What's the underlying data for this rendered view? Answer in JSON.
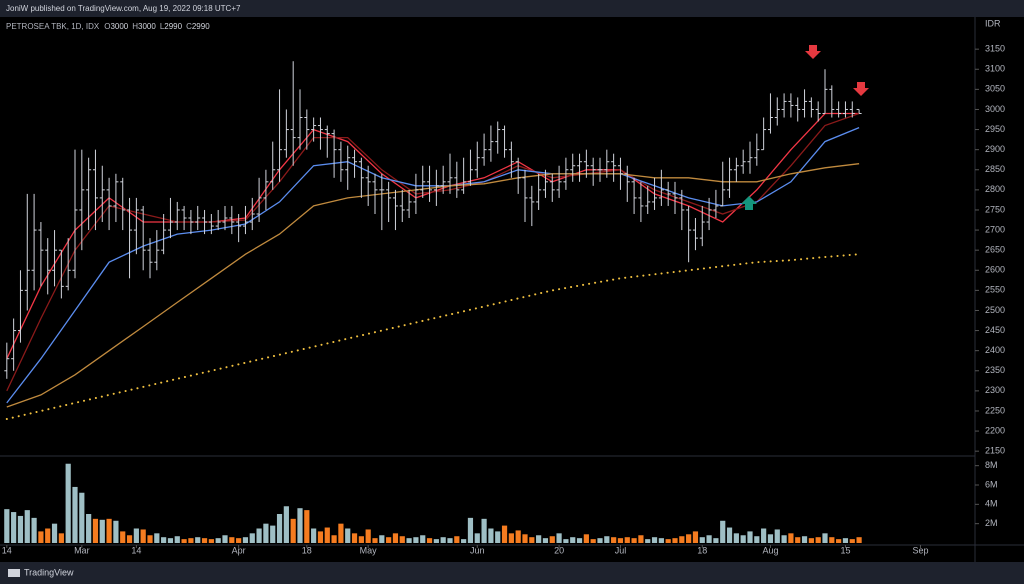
{
  "header": "JoniW published on TradingView.com, Aug 19, 2022 09:18 UTC+7",
  "footer": "TradingView",
  "chart_data": {
    "type": "ohlc",
    "title": "PETROSEA TBK, 1D, IDX",
    "ohlc_legend": [
      {
        "label": "O",
        "value": 3000
      },
      {
        "label": "H",
        "value": 3000
      },
      {
        "label": "L",
        "value": 2990
      },
      {
        "label": "C",
        "value": 2990
      }
    ],
    "currency": "IDR",
    "color": "#d1d4dc",
    "ylim": [
      2138,
      3230
    ],
    "yticks": [
      2150,
      2200,
      2250,
      2300,
      2350,
      2400,
      2450,
      2500,
      2550,
      2600,
      2650,
      2700,
      2750,
      2800,
      2850,
      2900,
      2950,
      3000,
      3050,
      3100,
      3150
    ],
    "xlim": [
      -1,
      142
    ],
    "xticks": [
      {
        "value": 0,
        "label": "14"
      },
      {
        "value": 11,
        "label": "Mar"
      },
      {
        "value": 19,
        "label": "14"
      },
      {
        "value": 34,
        "label": "Apr"
      },
      {
        "value": 44,
        "label": "18"
      },
      {
        "value": 53,
        "label": "May"
      },
      {
        "value": 69,
        "label": "Jun"
      },
      {
        "value": 81,
        "label": "20"
      },
      {
        "value": 90,
        "label": "Jul"
      },
      {
        "value": 102,
        "label": "18"
      },
      {
        "value": 112,
        "label": "Aug"
      },
      {
        "value": 123,
        "label": "15"
      },
      {
        "value": 134,
        "label": "Sep"
      }
    ],
    "grid": false,
    "ohlc": {
      "open": [
        2350,
        2380,
        2450,
        2550,
        2600,
        2700,
        2650,
        2600,
        2650,
        2560,
        2600,
        2750,
        2800,
        2850,
        2780,
        2800,
        2760,
        2820,
        2750,
        2700,
        2750,
        2650,
        2620,
        2650,
        2700,
        2720,
        2750,
        2730,
        2720,
        2730,
        2720,
        2710,
        2720,
        2730,
        2720,
        2710,
        2720,
        2740,
        2780,
        2820,
        2850,
        2900,
        2950,
        2930,
        2980,
        2950,
        2960,
        2950,
        2940,
        2900,
        2850,
        2880,
        2870,
        2830,
        2820,
        2800,
        2800,
        2780,
        2760,
        2750,
        2770,
        2800,
        2820,
        2800,
        2810,
        2820,
        2830,
        2800,
        2820,
        2850,
        2880,
        2900,
        2920,
        2950,
        2900,
        2870,
        2830,
        2780,
        2770,
        2800,
        2820,
        2800,
        2820,
        2850,
        2860,
        2870,
        2860,
        2850,
        2850,
        2870,
        2860,
        2840,
        2820,
        2780,
        2760,
        2770,
        2780,
        2800,
        2790,
        2780,
        2750,
        2700,
        2680,
        2720,
        2750,
        2760,
        2800,
        2850,
        2860,
        2870,
        2880,
        2900,
        2950,
        2980,
        3000,
        3020,
        3010,
        3000,
        3020,
        3000,
        2990,
        3050,
        3000,
        2990,
        3000,
        3000
      ],
      "high": [
        2420,
        2480,
        2600,
        2790,
        2790,
        2720,
        2680,
        2700,
        2650,
        2680,
        2900,
        2900,
        2880,
        2900,
        2860,
        2830,
        2840,
        2830,
        2780,
        2780,
        2760,
        2680,
        2700,
        2740,
        2780,
        2770,
        2760,
        2750,
        2760,
        2750,
        2740,
        2750,
        2760,
        2760,
        2740,
        2760,
        2780,
        2830,
        2850,
        2920,
        3050,
        3000,
        3120,
        3050,
        3000,
        2980,
        2980,
        2960,
        2950,
        2920,
        2910,
        2900,
        2880,
        2860,
        2840,
        2840,
        2820,
        2800,
        2800,
        2800,
        2840,
        2860,
        2860,
        2850,
        2860,
        2890,
        2870,
        2880,
        2900,
        2920,
        2940,
        2960,
        2970,
        2960,
        2920,
        2880,
        2850,
        2810,
        2840,
        2850,
        2840,
        2860,
        2880,
        2890,
        2890,
        2900,
        2880,
        2880,
        2900,
        2890,
        2880,
        2860,
        2830,
        2820,
        2810,
        2830,
        2850,
        2820,
        2820,
        2800,
        2760,
        2730,
        2760,
        2780,
        2800,
        2870,
        2880,
        2880,
        2900,
        2920,
        2940,
        2980,
        3040,
        3030,
        3040,
        3040,
        3030,
        3050,
        3030,
        3020,
        3100,
        3060,
        3020,
        3020,
        3020,
        3000
      ],
      "low": [
        2330,
        2350,
        2420,
        2500,
        2550,
        2560,
        2540,
        2560,
        2530,
        2550,
        2580,
        2650,
        2700,
        2700,
        2720,
        2700,
        2720,
        2700,
        2580,
        2640,
        2600,
        2580,
        2600,
        2640,
        2680,
        2700,
        2700,
        2690,
        2700,
        2690,
        2690,
        2700,
        2700,
        2690,
        2670,
        2690,
        2700,
        2720,
        2750,
        2800,
        2820,
        2880,
        2860,
        2900,
        2900,
        2920,
        2900,
        2880,
        2830,
        2820,
        2800,
        2830,
        2780,
        2760,
        2740,
        2700,
        2720,
        2700,
        2720,
        2730,
        2740,
        2780,
        2770,
        2760,
        2790,
        2790,
        2780,
        2790,
        2810,
        2830,
        2860,
        2870,
        2890,
        2880,
        2830,
        2790,
        2720,
        2710,
        2750,
        2780,
        2770,
        2780,
        2800,
        2820,
        2820,
        2830,
        2810,
        2820,
        2830,
        2820,
        2800,
        2770,
        2740,
        2720,
        2740,
        2750,
        2760,
        2760,
        2740,
        2700,
        2620,
        2650,
        2660,
        2700,
        2730,
        2760,
        2780,
        2820,
        2840,
        2840,
        2860,
        2900,
        2940,
        2960,
        2980,
        2980,
        2970,
        2980,
        2980,
        2970,
        2990,
        2980,
        2980,
        2980,
        2980,
        2990
      ],
      "close": [
        2380,
        2450,
        2550,
        2600,
        2700,
        2650,
        2600,
        2650,
        2560,
        2600,
        2750,
        2800,
        2850,
        2780,
        2800,
        2760,
        2820,
        2750,
        2700,
        2750,
        2650,
        2620,
        2650,
        2700,
        2720,
        2750,
        2730,
        2720,
        2730,
        2720,
        2710,
        2720,
        2730,
        2720,
        2710,
        2720,
        2740,
        2780,
        2820,
        2850,
        2900,
        2950,
        2930,
        2980,
        2950,
        2960,
        2950,
        2940,
        2900,
        2850,
        2880,
        2870,
        2830,
        2820,
        2800,
        2800,
        2780,
        2760,
        2750,
        2770,
        2800,
        2820,
        2800,
        2810,
        2820,
        2830,
        2800,
        2820,
        2850,
        2880,
        2900,
        2920,
        2950,
        2900,
        2870,
        2830,
        2780,
        2770,
        2800,
        2820,
        2800,
        2820,
        2850,
        2860,
        2870,
        2860,
        2850,
        2850,
        2870,
        2860,
        2840,
        2820,
        2780,
        2760,
        2770,
        2780,
        2800,
        2790,
        2780,
        2750,
        2700,
        2680,
        2720,
        2750,
        2760,
        2800,
        2850,
        2860,
        2870,
        2880,
        2900,
        2950,
        2980,
        3000,
        3020,
        3010,
        3000,
        3020,
        3000,
        2990,
        3050,
        3000,
        2990,
        3000,
        2990,
        2990
      ]
    },
    "line_x": [
      0,
      5,
      10,
      15,
      20,
      25,
      30,
      35,
      40,
      45,
      50,
      55,
      60,
      65,
      70,
      75,
      80,
      85,
      90,
      95,
      100,
      105,
      110,
      115,
      120,
      125
    ],
    "lines": [
      {
        "color": "#f23645",
        "dash": "solid",
        "values": [
          2380,
          2560,
          2700,
          2780,
          2720,
          2720,
          2720,
          2730,
          2850,
          2950,
          2920,
          2840,
          2780,
          2810,
          2830,
          2870,
          2820,
          2850,
          2850,
          2790,
          2760,
          2720,
          2800,
          2900,
          2990,
          2990
        ]
      },
      {
        "color": "#8b1a1a",
        "dash": "solid",
        "values": [
          2300,
          2480,
          2650,
          2760,
          2740,
          2720,
          2720,
          2725,
          2820,
          2930,
          2930,
          2850,
          2790,
          2800,
          2820,
          2860,
          2830,
          2840,
          2850,
          2800,
          2770,
          2740,
          2770,
          2860,
          2960,
          2990
        ]
      },
      {
        "color": "#5b8def",
        "dash": "solid",
        "values": [
          2270,
          2380,
          2500,
          2620,
          2660,
          2690,
          2700,
          2715,
          2770,
          2860,
          2870,
          2830,
          2810,
          2810,
          2820,
          2850,
          2840,
          2840,
          2840,
          2810,
          2780,
          2760,
          2770,
          2820,
          2920,
          2955
        ]
      },
      {
        "color": "#c08a3e",
        "dash": "solid",
        "values": [
          2260,
          2290,
          2340,
          2400,
          2460,
          2520,
          2580,
          2640,
          2690,
          2760,
          2780,
          2790,
          2800,
          2810,
          2815,
          2830,
          2840,
          2840,
          2840,
          2830,
          2830,
          2820,
          2820,
          2840,
          2855,
          2865
        ]
      },
      {
        "color": "#f0c040",
        "dash": "dotted",
        "values": [
          2230,
          2250,
          2270,
          2290,
          2310,
          2330,
          2350,
          2370,
          2390,
          2410,
          2430,
          2450,
          2470,
          2490,
          2510,
          2530,
          2550,
          2565,
          2580,
          2590,
          2600,
          2610,
          2620,
          2625,
          2633,
          2640
        ]
      }
    ],
    "volume": {
      "up_color": "#9fbfc5",
      "down_color": "#f57c20",
      "ylim": [
        0,
        9
      ],
      "yticks": [
        {
          "value": 2,
          "label": "2M"
        },
        {
          "value": 4,
          "label": "4M"
        },
        {
          "value": 6,
          "label": "6M"
        },
        {
          "value": 8,
          "label": "8M"
        }
      ],
      "values": [
        3.5,
        3.2,
        2.8,
        3.4,
        2.6,
        1.2,
        1.5,
        2.0,
        1.0,
        8.2,
        5.8,
        5.2,
        3.0,
        2.5,
        2.4,
        2.5,
        2.3,
        1.2,
        0.8,
        1.5,
        1.4,
        0.8,
        1.0,
        0.6,
        0.5,
        0.7,
        0.4,
        0.5,
        0.6,
        0.5,
        0.4,
        0.5,
        0.8,
        0.6,
        0.5,
        0.6,
        1.0,
        1.5,
        2.0,
        1.8,
        3.0,
        3.8,
        2.5,
        3.6,
        3.4,
        1.5,
        1.2,
        1.6,
        0.8,
        2.0,
        1.5,
        1.0,
        0.7,
        1.4,
        0.5,
        0.8,
        0.6,
        1.0,
        0.7,
        0.5,
        0.6,
        0.8,
        0.5,
        0.4,
        0.6,
        0.5,
        0.7,
        0.4,
        2.6,
        1.0,
        2.5,
        1.5,
        1.2,
        1.8,
        1.0,
        1.3,
        0.9,
        0.6,
        0.8,
        0.5,
        0.7,
        1.0,
        0.4,
        0.6,
        0.5,
        0.9,
        0.4,
        0.5,
        0.7,
        0.6,
        0.5,
        0.6,
        0.5,
        0.8,
        0.4,
        0.6,
        0.5,
        0.4,
        0.5,
        0.7,
        0.9,
        1.2,
        0.6,
        0.8,
        0.5,
        2.3,
        1.6,
        1.0,
        0.8,
        1.2,
        0.7,
        1.5,
        0.9,
        1.4,
        0.8,
        1.0,
        0.6,
        0.7,
        0.5,
        0.6,
        1.0,
        0.6,
        0.4,
        0.5,
        0.4,
        0.6
      ]
    }
  }
}
